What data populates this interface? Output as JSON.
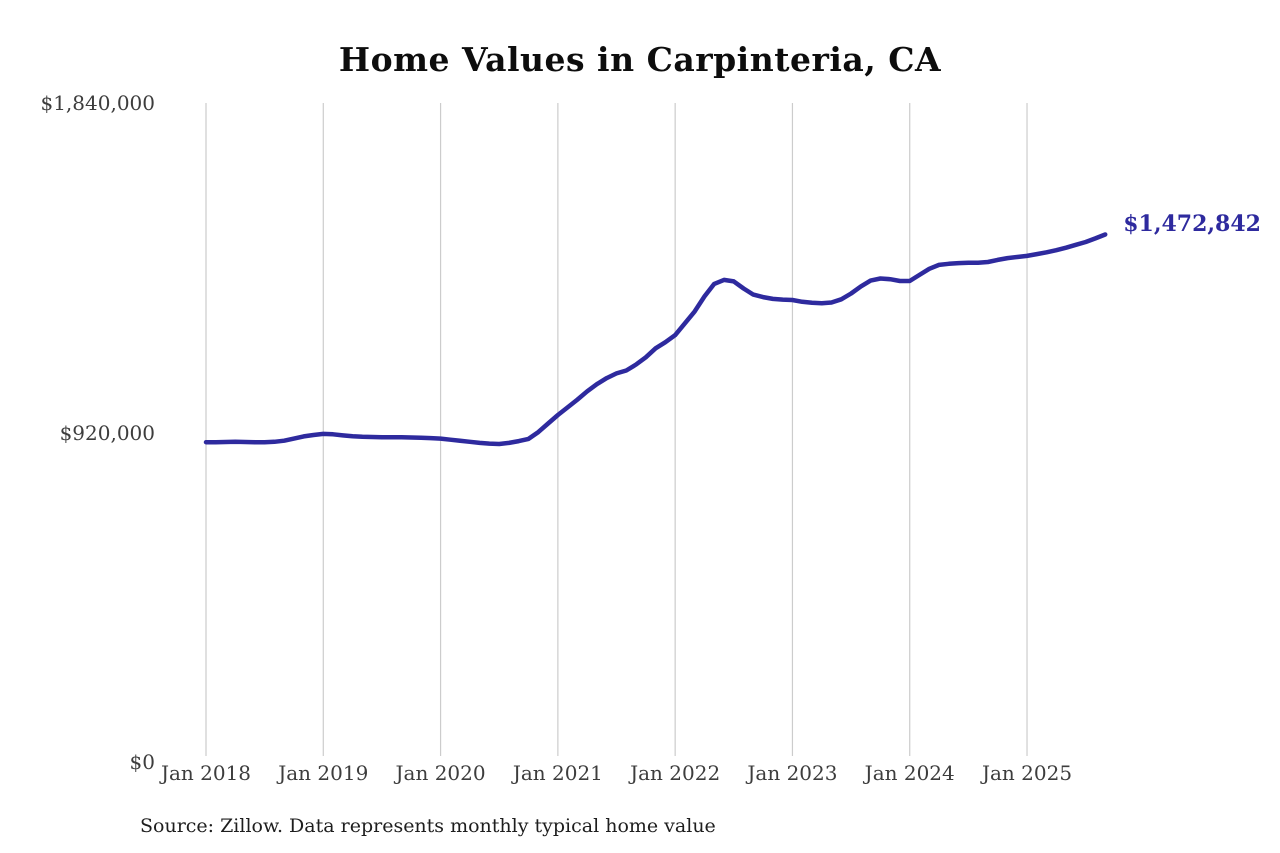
{
  "chart": {
    "title": "Home Values in Carpinteria, CA",
    "end_label": "$1,472,842",
    "source": "Source: Zillow. Data represents monthly typical home value",
    "colors": {
      "line": "#2e2a9e",
      "grid": "#cccccc",
      "tick_text": "#3d3d3d",
      "title_text": "#0d0d0d",
      "source_text": "#1e1e1e"
    }
  },
  "chart_data": {
    "type": "line",
    "title": "Home Values in Carpinteria, CA",
    "xlabel": "",
    "ylabel": "",
    "grid": "vertical-only",
    "legend": "none",
    "x_start_month": "2018-01",
    "x_end_month": "2025-09",
    "x_tick_labels": [
      "Jan 2018",
      "Jan 2019",
      "Jan 2020",
      "Jan 2021",
      "Jan 2022",
      "Jan 2023",
      "Jan 2024",
      "Jan 2025"
    ],
    "y_tick_labels": [
      "$0",
      "$920,000",
      "$1,840,000"
    ],
    "y_tick_values": [
      0,
      920000,
      1840000
    ],
    "ylim": [
      0,
      1840000
    ],
    "annotation": {
      "label": "$1,472,842",
      "value": 1472842,
      "position": "end-of-line"
    },
    "series": [
      {
        "name": "Monthly typical home value",
        "values": [
          893000,
          893000,
          893500,
          894000,
          893500,
          893000,
          893000,
          894000,
          897000,
          903000,
          909000,
          913000,
          916000,
          915000,
          912000,
          909500,
          908000,
          907500,
          907000,
          907000,
          906500,
          906000,
          905500,
          904500,
          903000,
          900000,
          897000,
          894000,
          891000,
          889000,
          888000,
          891000,
          896000,
          902000,
          921000,
          945000,
          969000,
          990000,
          1012000,
          1035000,
          1055000,
          1072000,
          1085000,
          1093000,
          1110000,
          1130000,
          1155000,
          1172000,
          1192000,
          1225000,
          1258000,
          1300000,
          1335000,
          1346000,
          1342000,
          1322000,
          1305000,
          1298000,
          1293000,
          1291000,
          1290000,
          1285000,
          1282000,
          1281000,
          1283000,
          1292000,
          1308000,
          1328000,
          1344000,
          1350000,
          1348000,
          1343000,
          1343000,
          1360000,
          1377000,
          1388000,
          1391000,
          1393000,
          1394000,
          1394000,
          1396000,
          1402000,
          1407000,
          1410000,
          1413000,
          1418000,
          1423000,
          1429000,
          1436000,
          1444000,
          1452000,
          1462000,
          1472842
        ]
      }
    ]
  }
}
